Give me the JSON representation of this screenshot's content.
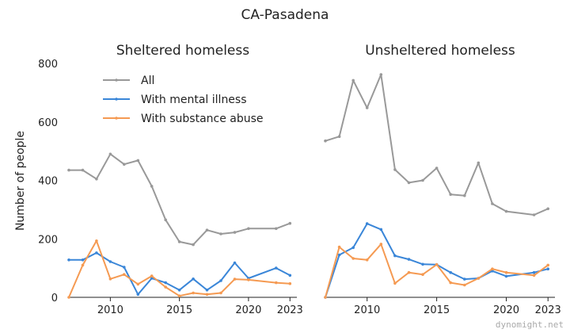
{
  "chart_data": {
    "type": "line",
    "title": "CA-Pasadena",
    "ylabel": "Number of people",
    "watermark": "dynomight.net",
    "xlim": [
      2007,
      2023.5
    ],
    "ylim": [
      0,
      800
    ],
    "xticks": [
      "2010",
      "2015",
      "2020",
      "2023"
    ],
    "yticks": [
      "0",
      "200",
      "400",
      "600",
      "800"
    ],
    "legend": [
      "All",
      "With mental illness",
      "With substance abuse"
    ],
    "legend_position": "top-left of left panel",
    "colors": {
      "All": "#999999",
      "With mental illness": "#3a86d8",
      "With substance abuse": "#f59a52"
    },
    "panels": [
      {
        "title": "Sheltered homeless",
        "series": [
          {
            "name": "All",
            "x": [
              2007,
              2008,
              2009,
              2010,
              2011,
              2012,
              2013,
              2014,
              2015,
              2016,
              2017,
              2018,
              2019,
              2020,
              2022,
              2023
            ],
            "y": [
              435,
              435,
              405,
              490,
              455,
              468,
              380,
              265,
              190,
              180,
              230,
              217,
              222,
              235,
              235,
              253
            ]
          },
          {
            "name": "With mental illness",
            "x": [
              2007,
              2008,
              2009,
              2010,
              2011,
              2012,
              2013,
              2014,
              2015,
              2016,
              2017,
              2018,
              2019,
              2020,
              2022,
              2023
            ],
            "y": [
              128,
              128,
              152,
              122,
              103,
              10,
              65,
              50,
              25,
              63,
              25,
              57,
              118,
              65,
              100,
              75
            ]
          },
          {
            "name": "With substance abuse",
            "x": [
              2007,
              2008,
              2009,
              2010,
              2011,
              2012,
              2013,
              2014,
              2015,
              2016,
              2017,
              2018,
              2019,
              2020,
              2022,
              2023
            ],
            "y": [
              0,
              110,
              193,
              63,
              78,
              45,
              73,
              35,
              5,
              15,
              10,
              15,
              62,
              60,
              50,
              47
            ]
          }
        ]
      },
      {
        "title": "Unsheltered homeless",
        "series": [
          {
            "name": "All",
            "x": [
              2007,
              2008,
              2009,
              2010,
              2011,
              2012,
              2013,
              2014,
              2015,
              2016,
              2017,
              2018,
              2019,
              2020,
              2022,
              2023
            ],
            "y": [
              535,
              550,
              742,
              648,
              762,
              437,
              392,
              400,
              442,
              352,
              348,
              460,
              320,
              294,
              282,
              303
            ]
          },
          {
            "name": "With mental illness",
            "x": [
              2007,
              2008,
              2009,
              2010,
              2011,
              2012,
              2013,
              2014,
              2015,
              2016,
              2017,
              2018,
              2019,
              2020,
              2022,
              2023
            ],
            "y": [
              0,
              145,
              170,
              252,
              232,
              142,
              130,
              113,
              112,
              85,
              62,
              65,
              90,
              72,
              85,
              97
            ]
          },
          {
            "name": "With substance abuse",
            "x": [
              2007,
              2008,
              2009,
              2010,
              2011,
              2012,
              2013,
              2014,
              2015,
              2016,
              2017,
              2018,
              2019,
              2020,
              2022,
              2023
            ],
            "y": [
              0,
              172,
              133,
              128,
              182,
              48,
              85,
              78,
              112,
              50,
              42,
              65,
              97,
              85,
              75,
              110
            ]
          }
        ]
      }
    ]
  }
}
